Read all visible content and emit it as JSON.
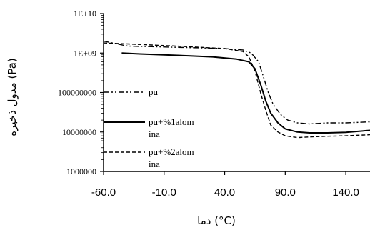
{
  "chart_data": {
    "type": "line",
    "xlabel": "دما (°C)",
    "ylabel": "مدول ذخیره (Pa)",
    "xlim": [
      -60,
      160
    ],
    "ylim": [
      1000000,
      10000000000
    ],
    "yscale": "log",
    "x_ticks": [
      "-60.0",
      "-10.0",
      "40.0",
      "90.0",
      "140.0"
    ],
    "y_ticks": [
      "1000000",
      "10000000",
      "100000000",
      "1E+09",
      "1E+10"
    ],
    "legend_position": "left",
    "grid": false,
    "series": [
      {
        "name": "pu",
        "style": "dash-dot-dot",
        "color": "#000000",
        "x": [
          -60,
          -40,
          -20,
          0,
          20,
          40,
          55,
          62,
          68,
          72,
          76,
          80,
          86,
          92,
          100,
          110,
          125,
          140,
          160
        ],
        "y": [
          2000000000,
          1500000000,
          1450000000,
          1400000000,
          1350000000,
          1300000000,
          1200000000,
          1000000000,
          600000000,
          250000000,
          100000000,
          50000000,
          28000000,
          20000000,
          17000000,
          16000000,
          17000000,
          17000000,
          18000000
        ]
      },
      {
        "name": "pu+%1alom\nina",
        "style": "solid",
        "color": "#000000",
        "x": [
          -45,
          -30,
          -10,
          10,
          30,
          50,
          60,
          65,
          70,
          74,
          78,
          84,
          90,
          100,
          110,
          125,
          140,
          160
        ],
        "y": [
          1000000000,
          950000000,
          900000000,
          850000000,
          800000000,
          700000000,
          600000000,
          400000000,
          150000000,
          60000000,
          30000000,
          17000000,
          12000000,
          10000000,
          9500000,
          9500000,
          9800000,
          11000000
        ]
      },
      {
        "name": "pu+%2alom\nina",
        "style": "dashed",
        "color": "#000000",
        "x": [
          -60,
          -40,
          -20,
          0,
          20,
          40,
          55,
          60,
          65,
          70,
          74,
          78,
          84,
          90,
          100,
          110,
          125,
          140,
          160
        ],
        "y": [
          1800000000,
          1700000000,
          1600000000,
          1500000000,
          1400000000,
          1300000000,
          1100000000,
          800000000,
          350000000,
          90000000,
          35000000,
          15000000,
          10000000,
          8000000,
          7200000,
          7500000,
          7800000,
          8000000,
          8500000
        ]
      }
    ]
  }
}
